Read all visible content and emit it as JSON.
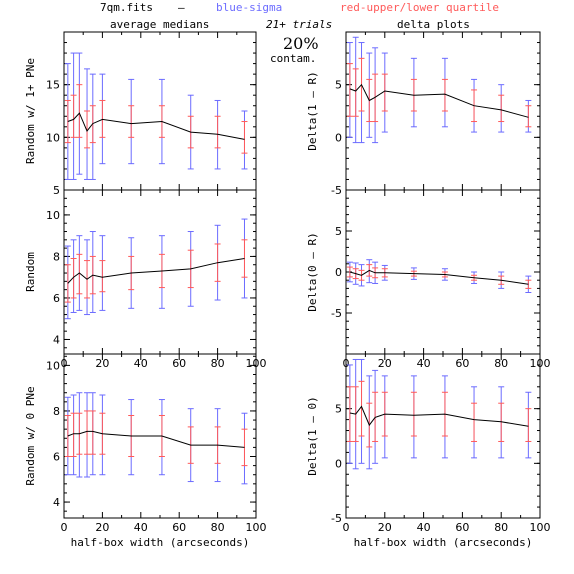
{
  "header": {
    "filename": "7qm.fits",
    "dash": "–",
    "blue_legend": "blue-sigma",
    "red_legend": "red-upper/lower quartile",
    "trials": "21+ trials",
    "contam_pct": "20%",
    "contam_label": "contam.",
    "col_left_title": "average medians",
    "col_right_title": "delta plots",
    "colors": {
      "blue": "#6b6bff",
      "red": "#ff5a5a",
      "line": "#000000"
    }
  },
  "chart_data": [
    {
      "type": "line",
      "panel": "left-top",
      "title": "average medians",
      "xlabel": "",
      "ylabel": "Random w/ 1+ PNe",
      "xlim": [
        0,
        100
      ],
      "ylim": [
        5,
        20
      ],
      "xticks": [],
      "yticks": [
        5,
        10,
        15
      ],
      "x": [
        2,
        5,
        8,
        12,
        15,
        20,
        35,
        51,
        66,
        80,
        94
      ],
      "y": [
        11.5,
        11.7,
        12.3,
        10.6,
        11.3,
        11.7,
        11.3,
        11.5,
        10.5,
        10.3,
        9.8
      ],
      "sigma_low": [
        6.0,
        6.0,
        6.5,
        6.0,
        6.0,
        7.5,
        7.5,
        7.5,
        7.0,
        7.0,
        7.0
      ],
      "sigma_high": [
        17.0,
        18.0,
        18.0,
        16.5,
        16.0,
        16.0,
        15.5,
        15.5,
        14.0,
        13.5,
        12.5
      ],
      "q_low": [
        9.5,
        10.0,
        10.0,
        9.0,
        9.5,
        10.0,
        10.0,
        10.0,
        9.0,
        9.0,
        8.5
      ],
      "q_high": [
        13.5,
        14.0,
        15.0,
        12.5,
        13.0,
        13.5,
        13.0,
        13.0,
        12.0,
        12.0,
        11.5
      ]
    },
    {
      "type": "line",
      "panel": "right-top",
      "title": "delta plots",
      "xlabel": "",
      "ylabel": "Delta(1 – R)",
      "xlim": [
        0,
        100
      ],
      "ylim": [
        -5,
        10
      ],
      "xticks": [],
      "yticks": [
        -5,
        0,
        5
      ],
      "x": [
        2,
        5,
        8,
        12,
        15,
        20,
        35,
        51,
        66,
        80,
        94
      ],
      "y": [
        4.6,
        4.4,
        5.0,
        3.5,
        3.8,
        4.4,
        4.0,
        4.1,
        3.0,
        2.6,
        1.9
      ],
      "sigma_low": [
        0.0,
        -0.5,
        -0.5,
        0.0,
        -0.5,
        0.5,
        1.0,
        1.0,
        0.5,
        0.5,
        0.5
      ],
      "sigma_high": [
        9.0,
        9.5,
        9.0,
        8.0,
        8.5,
        8.0,
        7.5,
        7.5,
        5.5,
        5.0,
        3.5
      ],
      "q_low": [
        2.0,
        2.0,
        2.5,
        1.5,
        1.5,
        2.5,
        2.5,
        2.5,
        1.5,
        1.5,
        1.0
      ],
      "q_high": [
        7.0,
        6.5,
        7.5,
        5.5,
        6.0,
        6.0,
        5.5,
        5.5,
        4.5,
        4.0,
        3.0
      ]
    },
    {
      "type": "line",
      "panel": "left-middle",
      "title": "",
      "xlabel": "",
      "ylabel": "Random",
      "xlim": [
        0,
        100
      ],
      "ylim": [
        3.3,
        11.2
      ],
      "xticks": [
        0,
        20,
        40,
        60,
        80,
        100
      ],
      "yticks": [
        4,
        6,
        8,
        10
      ],
      "x": [
        2,
        5,
        8,
        12,
        15,
        20,
        35,
        51,
        66,
        80,
        94
      ],
      "y": [
        6.7,
        7.0,
        7.2,
        6.9,
        7.1,
        7.0,
        7.2,
        7.3,
        7.4,
        7.7,
        7.9
      ],
      "sigma_low": [
        5.0,
        5.3,
        5.4,
        5.2,
        5.3,
        5.4,
        5.5,
        5.5,
        5.6,
        5.9,
        6.0
      ],
      "sigma_high": [
        8.5,
        8.8,
        9.0,
        8.8,
        9.2,
        9.0,
        8.9,
        9.0,
        9.2,
        9.5,
        9.8
      ],
      "q_low": [
        5.8,
        6.0,
        6.2,
        6.0,
        6.2,
        6.3,
        6.4,
        6.5,
        6.5,
        6.8,
        7.0
      ],
      "q_high": [
        7.6,
        7.9,
        8.1,
        7.8,
        8.0,
        7.8,
        8.0,
        8.1,
        8.3,
        8.6,
        8.8
      ]
    },
    {
      "type": "line",
      "panel": "right-middle",
      "title": "",
      "xlabel": "",
      "ylabel": "Delta(0 – R)",
      "xlim": [
        0,
        100
      ],
      "ylim": [
        -10,
        10
      ],
      "xticks": [
        0,
        20,
        40,
        60,
        80,
        100
      ],
      "yticks": [
        -5,
        0,
        5
      ],
      "x": [
        2,
        5,
        8,
        12,
        15,
        20,
        35,
        51,
        66,
        80,
        94
      ],
      "y": [
        0.0,
        -0.2,
        -0.4,
        0.2,
        -0.1,
        -0.1,
        -0.2,
        -0.3,
        -0.7,
        -1.0,
        -1.5
      ],
      "sigma_low": [
        -1.2,
        -1.5,
        -1.7,
        -1.3,
        -1.4,
        -1.0,
        -0.9,
        -1.0,
        -1.4,
        -2.0,
        -2.5
      ],
      "sigma_high": [
        1.2,
        1.1,
        0.9,
        1.5,
        1.2,
        0.8,
        0.5,
        0.4,
        0.0,
        0.0,
        -0.5
      ],
      "q_low": [
        -0.6,
        -0.8,
        -1.0,
        -0.5,
        -0.7,
        -0.6,
        -0.5,
        -0.6,
        -1.0,
        -1.5,
        -2.0
      ],
      "q_high": [
        0.6,
        0.4,
        0.2,
        0.9,
        0.5,
        0.4,
        0.1,
        0.0,
        -0.4,
        -0.5,
        -1.0
      ]
    },
    {
      "type": "line",
      "panel": "left-bottom",
      "title": "",
      "xlabel": "half-box width (arcseconds)",
      "ylabel": "Random w/ 0 PNe",
      "xlim": [
        0,
        100
      ],
      "ylim": [
        3.3,
        10.5
      ],
      "xticks": [
        0,
        20,
        40,
        60,
        80,
        100
      ],
      "yticks": [
        4,
        6,
        8,
        10
      ],
      "x": [
        2,
        5,
        8,
        12,
        15,
        20,
        35,
        51,
        66,
        80,
        94
      ],
      "y": [
        6.9,
        7.0,
        7.0,
        7.1,
        7.1,
        7.0,
        6.9,
        6.9,
        6.5,
        6.5,
        6.4
      ],
      "sigma_low": [
        5.2,
        5.2,
        5.1,
        5.1,
        5.2,
        5.2,
        5.2,
        5.2,
        4.9,
        4.9,
        4.8
      ],
      "sigma_high": [
        8.6,
        8.7,
        8.8,
        8.8,
        8.8,
        8.7,
        8.5,
        8.5,
        8.1,
        8.1,
        7.9
      ],
      "q_low": [
        6.0,
        6.0,
        6.1,
        6.1,
        6.1,
        6.1,
        6.0,
        6.0,
        5.7,
        5.7,
        5.6
      ],
      "q_high": [
        7.8,
        7.9,
        7.9,
        8.0,
        8.0,
        7.9,
        7.8,
        7.8,
        7.3,
        7.3,
        7.2
      ]
    },
    {
      "type": "line",
      "panel": "right-bottom",
      "title": "",
      "xlabel": "half-box width (arcseconds)",
      "ylabel": "Delta(1 – 0)",
      "xlim": [
        0,
        100
      ],
      "ylim": [
        -5,
        10
      ],
      "xticks": [
        0,
        20,
        40,
        60,
        80,
        100
      ],
      "yticks": [
        -5,
        0,
        5
      ],
      "x": [
        2,
        5,
        8,
        12,
        15,
        20,
        35,
        51,
        66,
        80,
        94
      ],
      "y": [
        4.6,
        4.5,
        5.2,
        3.5,
        4.2,
        4.5,
        4.4,
        4.5,
        4.0,
        3.8,
        3.4
      ],
      "sigma_low": [
        0.0,
        -0.5,
        0.0,
        -0.5,
        0.0,
        0.5,
        0.5,
        0.5,
        0.5,
        0.5,
        0.5
      ],
      "sigma_high": [
        9.0,
        9.5,
        9.5,
        8.0,
        8.5,
        8.0,
        8.0,
        8.0,
        7.0,
        7.0,
        6.5
      ],
      "q_low": [
        2.0,
        2.0,
        2.5,
        1.5,
        2.0,
        2.5,
        2.5,
        2.5,
        2.0,
        2.0,
        2.0
      ],
      "q_high": [
        7.0,
        7.0,
        7.5,
        5.5,
        6.5,
        6.5,
        6.5,
        6.5,
        5.5,
        5.5,
        5.0
      ]
    }
  ]
}
